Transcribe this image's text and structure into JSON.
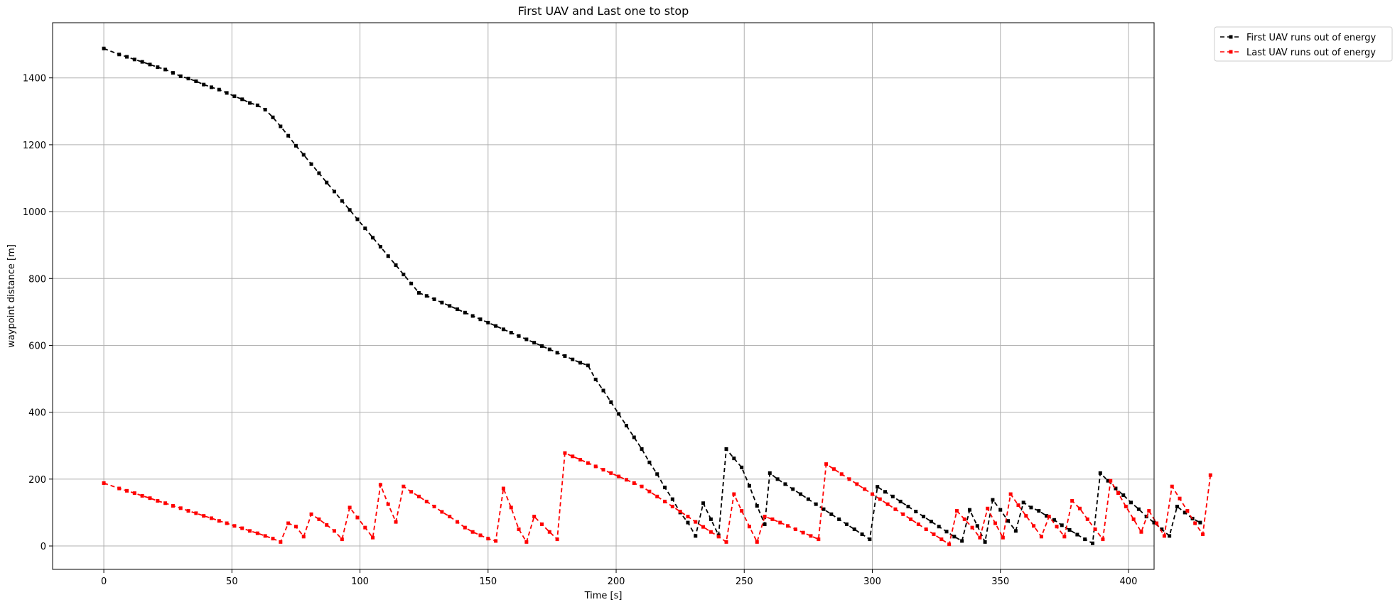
{
  "chart_data": {
    "type": "line",
    "title": "First UAV and Last one to stop",
    "xlabel": "Time [s]",
    "ylabel": "waypoint distance [m]",
    "xlim": [
      -20,
      410
    ],
    "ylim": [
      -70,
      1565
    ],
    "xticks": [
      0,
      50,
      100,
      150,
      200,
      250,
      300,
      350,
      400
    ],
    "yticks": [
      0,
      200,
      400,
      600,
      800,
      1000,
      1200,
      1400
    ],
    "grid": true,
    "legend_position": "outside-top-right",
    "series": [
      {
        "name": "First UAV runs out of energy",
        "color": "#000000",
        "points": [
          [
            0,
            1488
          ],
          [
            6,
            1470
          ],
          [
            9,
            1463
          ],
          [
            12,
            1455
          ],
          [
            15,
            1448
          ],
          [
            18,
            1440
          ],
          [
            21,
            1432
          ],
          [
            24,
            1425
          ],
          [
            27,
            1415
          ],
          [
            30,
            1405
          ],
          [
            33,
            1398
          ],
          [
            36,
            1390
          ],
          [
            39,
            1380
          ],
          [
            42,
            1372
          ],
          [
            45,
            1365
          ],
          [
            48,
            1355
          ],
          [
            51,
            1345
          ],
          [
            54,
            1336
          ],
          [
            57,
            1325
          ],
          [
            60,
            1318
          ],
          [
            63,
            1305
          ],
          [
            66,
            1282
          ],
          [
            69,
            1255
          ],
          [
            72,
            1227
          ],
          [
            75,
            1197
          ],
          [
            78,
            1170
          ],
          [
            81,
            1142
          ],
          [
            84,
            1115
          ],
          [
            87,
            1087
          ],
          [
            90,
            1060
          ],
          [
            93,
            1032
          ],
          [
            96,
            1005
          ],
          [
            99,
            977
          ],
          [
            102,
            950
          ],
          [
            105,
            922
          ],
          [
            108,
            895
          ],
          [
            111,
            867
          ],
          [
            114,
            840
          ],
          [
            117,
            812
          ],
          [
            120,
            785
          ],
          [
            123,
            757
          ],
          [
            126,
            748
          ],
          [
            129,
            738
          ],
          [
            132,
            728
          ],
          [
            135,
            718
          ],
          [
            138,
            708
          ],
          [
            141,
            698
          ],
          [
            144,
            688
          ],
          [
            147,
            678
          ],
          [
            150,
            668
          ],
          [
            153,
            658
          ],
          [
            156,
            648
          ],
          [
            159,
            638
          ],
          [
            162,
            628
          ],
          [
            165,
            618
          ],
          [
            168,
            608
          ],
          [
            171,
            598
          ],
          [
            174,
            588
          ],
          [
            177,
            578
          ],
          [
            180,
            568
          ],
          [
            183,
            558
          ],
          [
            186,
            548
          ],
          [
            189,
            540
          ],
          [
            192,
            498
          ],
          [
            195,
            465
          ],
          [
            198,
            430
          ],
          [
            201,
            395
          ],
          [
            204,
            360
          ],
          [
            207,
            325
          ],
          [
            210,
            290
          ],
          [
            213,
            250
          ],
          [
            216,
            215
          ],
          [
            219,
            175
          ],
          [
            222,
            140
          ],
          [
            225,
            100
          ],
          [
            228,
            70
          ],
          [
            231,
            30
          ],
          [
            234,
            128
          ],
          [
            237,
            80
          ],
          [
            240,
            32
          ],
          [
            243,
            290
          ],
          [
            246,
            262
          ],
          [
            249,
            235
          ],
          [
            252,
            180
          ],
          [
            255,
            120
          ],
          [
            258,
            65
          ],
          [
            260,
            218
          ],
          [
            263,
            200
          ],
          [
            266,
            185
          ],
          [
            269,
            170
          ],
          [
            272,
            155
          ],
          [
            275,
            140
          ],
          [
            278,
            125
          ],
          [
            281,
            110
          ],
          [
            284,
            95
          ],
          [
            287,
            80
          ],
          [
            290,
            65
          ],
          [
            293,
            50
          ],
          [
            296,
            35
          ],
          [
            299,
            20
          ],
          [
            302,
            177
          ],
          [
            305,
            162
          ],
          [
            308,
            148
          ],
          [
            311,
            133
          ],
          [
            314,
            118
          ],
          [
            317,
            103
          ],
          [
            320,
            88
          ],
          [
            323,
            73
          ],
          [
            326,
            58
          ],
          [
            329,
            43
          ],
          [
            332,
            28
          ],
          [
            335,
            15
          ],
          [
            338,
            108
          ],
          [
            341,
            60
          ],
          [
            344,
            12
          ],
          [
            347,
            138
          ],
          [
            350,
            108
          ],
          [
            353,
            75
          ],
          [
            356,
            45
          ],
          [
            359,
            130
          ],
          [
            362,
            115
          ],
          [
            365,
            105
          ],
          [
            368,
            90
          ],
          [
            371,
            78
          ],
          [
            374,
            62
          ],
          [
            377,
            48
          ],
          [
            380,
            34
          ],
          [
            383,
            20
          ],
          [
            386,
            8
          ],
          [
            389,
            218
          ],
          [
            392,
            195
          ],
          [
            395,
            172
          ],
          [
            398,
            152
          ],
          [
            401,
            130
          ],
          [
            404,
            110
          ],
          [
            407,
            88
          ],
          [
            410,
            70
          ],
          [
            413,
            50
          ],
          [
            416,
            30
          ],
          [
            419,
            118
          ],
          [
            422,
            100
          ],
          [
            425,
            82
          ],
          [
            428,
            70
          ]
        ]
      },
      {
        "name": "Last UAV runs out of energy",
        "color": "#ff0000",
        "points": [
          [
            0,
            188
          ],
          [
            6,
            172
          ],
          [
            9,
            165
          ],
          [
            12,
            158
          ],
          [
            15,
            150
          ],
          [
            18,
            143
          ],
          [
            21,
            135
          ],
          [
            24,
            128
          ],
          [
            27,
            120
          ],
          [
            30,
            113
          ],
          [
            33,
            105
          ],
          [
            36,
            98
          ],
          [
            39,
            90
          ],
          [
            42,
            83
          ],
          [
            45,
            75
          ],
          [
            48,
            68
          ],
          [
            51,
            60
          ],
          [
            54,
            53
          ],
          [
            57,
            45
          ],
          [
            60,
            38
          ],
          [
            63,
            30
          ],
          [
            66,
            22
          ],
          [
            69,
            12
          ],
          [
            72,
            68
          ],
          [
            75,
            58
          ],
          [
            78,
            28
          ],
          [
            81,
            95
          ],
          [
            84,
            80
          ],
          [
            87,
            63
          ],
          [
            90,
            45
          ],
          [
            93,
            20
          ],
          [
            96,
            115
          ],
          [
            99,
            85
          ],
          [
            102,
            55
          ],
          [
            105,
            25
          ],
          [
            108,
            183
          ],
          [
            111,
            125
          ],
          [
            114,
            72
          ],
          [
            117,
            178
          ],
          [
            120,
            162
          ],
          [
            123,
            148
          ],
          [
            126,
            133
          ],
          [
            129,
            118
          ],
          [
            132,
            102
          ],
          [
            135,
            88
          ],
          [
            138,
            72
          ],
          [
            141,
            55
          ],
          [
            144,
            42
          ],
          [
            147,
            32
          ],
          [
            150,
            22
          ],
          [
            153,
            15
          ],
          [
            156,
            172
          ],
          [
            159,
            115
          ],
          [
            162,
            50
          ],
          [
            165,
            12
          ],
          [
            168,
            88
          ],
          [
            171,
            65
          ],
          [
            174,
            42
          ],
          [
            177,
            20
          ],
          [
            180,
            278
          ],
          [
            183,
            268
          ],
          [
            186,
            258
          ],
          [
            189,
            248
          ],
          [
            192,
            238
          ],
          [
            195,
            228
          ],
          [
            198,
            218
          ],
          [
            201,
            208
          ],
          [
            204,
            198
          ],
          [
            207,
            188
          ],
          [
            210,
            178
          ],
          [
            213,
            163
          ],
          [
            216,
            148
          ],
          [
            219,
            133
          ],
          [
            222,
            118
          ],
          [
            225,
            103
          ],
          [
            228,
            88
          ],
          [
            231,
            72
          ],
          [
            234,
            57
          ],
          [
            237,
            42
          ],
          [
            240,
            28
          ],
          [
            243,
            12
          ],
          [
            246,
            155
          ],
          [
            249,
            105
          ],
          [
            252,
            58
          ],
          [
            255,
            12
          ],
          [
            258,
            88
          ],
          [
            261,
            80
          ],
          [
            264,
            70
          ],
          [
            267,
            60
          ],
          [
            270,
            50
          ],
          [
            273,
            40
          ],
          [
            276,
            30
          ],
          [
            279,
            20
          ],
          [
            282,
            245
          ],
          [
            285,
            230
          ],
          [
            288,
            215
          ],
          [
            291,
            200
          ],
          [
            294,
            185
          ],
          [
            297,
            170
          ],
          [
            300,
            155
          ],
          [
            303,
            140
          ],
          [
            306,
            125
          ],
          [
            309,
            110
          ],
          [
            312,
            95
          ],
          [
            315,
            80
          ],
          [
            318,
            65
          ],
          [
            321,
            50
          ],
          [
            324,
            35
          ],
          [
            327,
            20
          ],
          [
            330,
            5
          ],
          [
            333,
            105
          ],
          [
            336,
            80
          ],
          [
            339,
            55
          ],
          [
            342,
            25
          ],
          [
            345,
            112
          ],
          [
            348,
            68
          ],
          [
            351,
            25
          ],
          [
            354,
            155
          ],
          [
            357,
            122
          ],
          [
            360,
            90
          ],
          [
            363,
            60
          ],
          [
            366,
            28
          ],
          [
            369,
            88
          ],
          [
            372,
            58
          ],
          [
            375,
            28
          ],
          [
            378,
            135
          ],
          [
            381,
            112
          ],
          [
            384,
            80
          ],
          [
            387,
            50
          ],
          [
            390,
            20
          ],
          [
            393,
            195
          ],
          [
            396,
            158
          ],
          [
            399,
            118
          ],
          [
            402,
            80
          ],
          [
            405,
            42
          ],
          [
            408,
            105
          ],
          [
            411,
            68
          ],
          [
            414,
            30
          ],
          [
            417,
            178
          ],
          [
            420,
            142
          ],
          [
            423,
            105
          ],
          [
            426,
            68
          ],
          [
            429,
            35
          ],
          [
            432,
            212
          ]
        ]
      }
    ]
  }
}
